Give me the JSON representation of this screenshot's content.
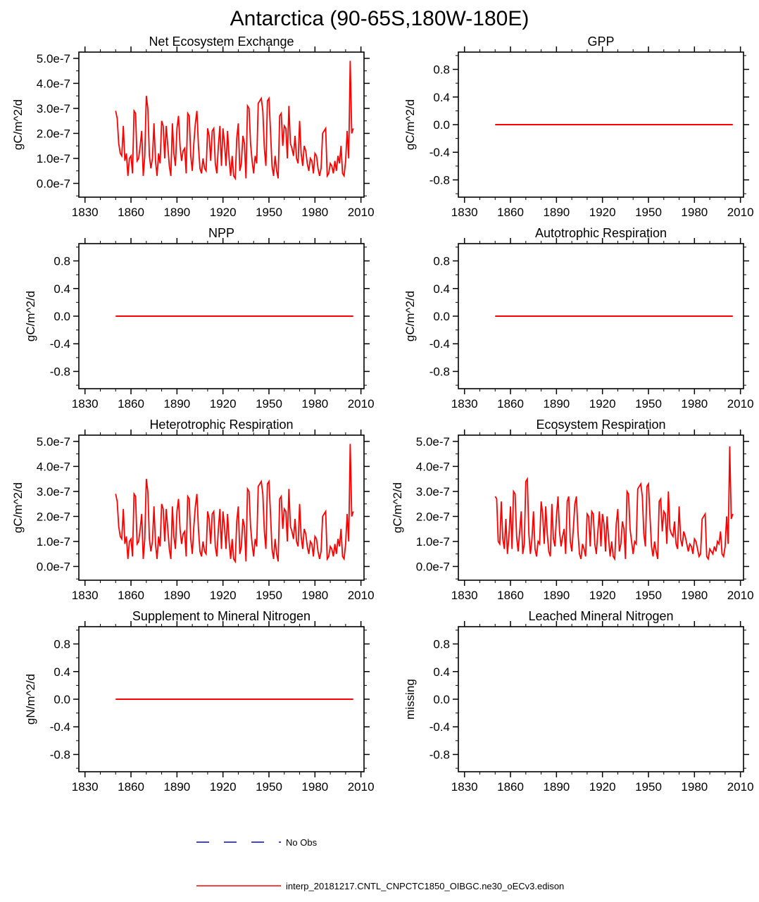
{
  "page": {
    "title": "Antarctica (90-65S,180W-180E)"
  },
  "legend": {
    "no_obs": {
      "label": "No Obs",
      "color": "#4444cc",
      "style": "dashed"
    },
    "model": {
      "label": "interp_20181217.CNTL_CNPCTC1850_OIBGC.ne30_oECv3.edison",
      "color": "#ff0000",
      "style": "solid"
    }
  },
  "chart_data": [
    {
      "type": "line",
      "title": "Net Ecosystem Exchange",
      "ylabel": "gC/m^2/d",
      "line_color": "#ff0000",
      "grid": false,
      "xlim": [
        1826,
        2012
      ],
      "ylim": [
        -5.5e-08,
        5.25e-07
      ],
      "x_ticks": [
        1830,
        1860,
        1890,
        1920,
        1950,
        1980,
        2010
      ],
      "x_minor_step": 10,
      "y_ticks": [
        0,
        1e-07,
        2e-07,
        3e-07,
        4e-07,
        5e-07
      ],
      "y_tick_labels": [
        "0.0e-7",
        "1.0e-7",
        "2.0e-7",
        "3.0e-7",
        "4.0e-7",
        "5.0e-7"
      ],
      "y_minor_step": 5e-08,
      "x_start": 1850,
      "x_step": 1,
      "value_scale": 1e-07,
      "values": [
        2.9,
        2.6,
        1.6,
        1.2,
        1.1,
        2.3,
        0.9,
        1.2,
        0.3,
        1.0,
        1.1,
        0.4,
        2.9,
        2.8,
        0.9,
        1.0,
        1.5,
        2.1,
        0.3,
        1.1,
        3.5,
        3.0,
        1.1,
        0.6,
        1.0,
        2.4,
        0.9,
        0.3,
        1.2,
        0.8,
        2.5,
        2.3,
        1.0,
        2.3,
        1.5,
        0.7,
        0.3,
        2.4,
        1.2,
        0.7,
        2.2,
        2.7,
        1.5,
        0.9,
        1.3,
        1.4,
        0.4,
        2.8,
        2.7,
        1.1,
        0.5,
        1.6,
        2.4,
        2.9,
        1.5,
        0.6,
        0.4,
        1.0,
        0.6,
        0.5,
        2.2,
        1.9,
        0.9,
        2.1,
        2.2,
        0.8,
        0.4,
        1.5,
        2.3,
        0.7,
        2.2,
        1.6,
        0.7,
        2.1,
        1.0,
        0.3,
        1.1,
        0.3,
        0.2,
        1.8,
        2.4,
        0.5,
        0.8,
        1.9,
        1.6,
        0.2,
        3.1,
        3.0,
        1.6,
        0.9,
        0.4,
        1.1,
        0.8,
        3.2,
        3.3,
        3.4,
        2.9,
        1.4,
        0.7,
        3.3,
        3.4,
        2.1,
        0.7,
        0.3,
        1.1,
        0.5,
        0.2,
        2.7,
        2.8,
        1.5,
        2.3,
        2.2,
        1.0,
        3.1,
        1.6,
        1.4,
        1.1,
        1.9,
        1.0,
        0.8,
        2.5,
        1.2,
        0.7,
        1.5,
        1.3,
        0.8,
        0.5,
        1.0,
        0.9,
        0.4,
        1.2,
        1.1,
        0.6,
        0.3,
        0.6,
        2.0,
        2.1,
        2.2,
        0.3,
        0.4,
        0.8,
        0.7,
        0.4,
        0.9,
        0.5,
        1.1,
        0.8,
        1.5,
        0.4,
        0.3,
        0.9,
        2.1,
        1.0,
        4.9,
        2.0,
        2.2
      ]
    },
    {
      "type": "line",
      "title": "GPP",
      "ylabel": "gC/m^2/d",
      "line_color": "#ff0000",
      "grid": false,
      "xlim": [
        1826,
        2012
      ],
      "ylim": [
        -1.05,
        1.05
      ],
      "x_ticks": [
        1830,
        1860,
        1890,
        1920,
        1950,
        1980,
        2010
      ],
      "x_minor_step": 10,
      "y_ticks": [
        -0.8,
        -0.4,
        0,
        0.4,
        0.8
      ],
      "y_tick_labels": [
        "-0.8",
        "-0.4",
        "0.0",
        "0.4",
        "0.8"
      ],
      "y_minor_step": 0.2,
      "flat": {
        "x0": 1850,
        "x1": 2005,
        "y": 0.0
      },
      "values": null
    },
    {
      "type": "line",
      "title": "NPP",
      "ylabel": "gC/m^2/d",
      "line_color": "#ff0000",
      "grid": false,
      "xlim": [
        1826,
        2012
      ],
      "ylim": [
        -1.05,
        1.05
      ],
      "x_ticks": [
        1830,
        1860,
        1890,
        1920,
        1950,
        1980,
        2010
      ],
      "x_minor_step": 10,
      "y_ticks": [
        -0.8,
        -0.4,
        0,
        0.4,
        0.8
      ],
      "y_tick_labels": [
        "-0.8",
        "-0.4",
        "0.0",
        "0.4",
        "0.8"
      ],
      "y_minor_step": 0.2,
      "flat": {
        "x0": 1850,
        "x1": 2005,
        "y": 0.0
      },
      "values": null
    },
    {
      "type": "line",
      "title": "Autotrophic Respiration",
      "ylabel": "gC/m^2/d",
      "line_color": "#ff0000",
      "grid": false,
      "xlim": [
        1826,
        2012
      ],
      "ylim": [
        -1.05,
        1.05
      ],
      "x_ticks": [
        1830,
        1860,
        1890,
        1920,
        1950,
        1980,
        2010
      ],
      "x_minor_step": 10,
      "y_ticks": [
        -0.8,
        -0.4,
        0,
        0.4,
        0.8
      ],
      "y_tick_labels": [
        "-0.8",
        "-0.4",
        "0.0",
        "0.4",
        "0.8"
      ],
      "y_minor_step": 0.2,
      "flat": {
        "x0": 1850,
        "x1": 2005,
        "y": 0.0
      },
      "values": null
    },
    {
      "type": "line",
      "title": "Heterotrophic Respiration",
      "ylabel": "gC/m^2/d",
      "line_color": "#ff0000",
      "grid": false,
      "xlim": [
        1826,
        2012
      ],
      "ylim": [
        -5.5e-08,
        5.25e-07
      ],
      "x_ticks": [
        1830,
        1860,
        1890,
        1920,
        1950,
        1980,
        2010
      ],
      "x_minor_step": 10,
      "y_ticks": [
        0,
        1e-07,
        2e-07,
        3e-07,
        4e-07,
        5e-07
      ],
      "y_tick_labels": [
        "0.0e-7",
        "1.0e-7",
        "2.0e-7",
        "3.0e-7",
        "4.0e-7",
        "5.0e-7"
      ],
      "y_minor_step": 5e-08,
      "x_start": 1850,
      "x_step": 1,
      "value_scale": 1e-07,
      "values": [
        2.9,
        2.6,
        1.6,
        1.2,
        1.1,
        2.3,
        0.9,
        1.2,
        0.3,
        1.0,
        1.1,
        0.4,
        2.9,
        2.8,
        0.9,
        1.0,
        1.5,
        2.1,
        0.3,
        1.1,
        3.5,
        3.0,
        1.1,
        0.6,
        1.0,
        2.4,
        0.9,
        0.3,
        1.2,
        0.8,
        2.5,
        2.3,
        1.0,
        2.3,
        1.5,
        0.7,
        0.3,
        2.4,
        1.2,
        0.7,
        2.2,
        2.7,
        1.5,
        0.9,
        1.3,
        1.4,
        0.4,
        2.8,
        2.7,
        1.1,
        0.5,
        1.6,
        2.4,
        2.9,
        1.5,
        0.6,
        0.4,
        1.0,
        0.6,
        0.5,
        2.2,
        1.9,
        0.9,
        2.1,
        2.2,
        0.8,
        0.4,
        1.5,
        2.3,
        0.7,
        2.2,
        1.6,
        0.7,
        2.1,
        1.0,
        0.3,
        1.1,
        0.3,
        0.2,
        1.8,
        2.4,
        0.5,
        0.8,
        1.9,
        1.6,
        0.2,
        3.1,
        3.0,
        1.6,
        0.9,
        0.4,
        1.1,
        0.8,
        3.2,
        3.3,
        3.4,
        2.9,
        1.4,
        0.7,
        3.3,
        3.4,
        2.1,
        0.7,
        0.3,
        1.1,
        0.5,
        0.2,
        2.7,
        2.8,
        1.5,
        2.3,
        2.2,
        1.0,
        3.1,
        1.6,
        1.4,
        1.1,
        1.9,
        1.0,
        0.8,
        2.5,
        1.2,
        0.7,
        1.5,
        1.3,
        0.8,
        0.5,
        1.0,
        0.9,
        0.4,
        1.2,
        1.1,
        0.6,
        0.3,
        0.6,
        2.0,
        2.1,
        2.2,
        0.3,
        0.4,
        0.8,
        0.7,
        0.4,
        0.9,
        0.5,
        1.1,
        0.8,
        1.5,
        0.4,
        0.3,
        0.9,
        2.1,
        1.0,
        4.9,
        2.0,
        2.2
      ]
    },
    {
      "type": "line",
      "title": "Ecosystem Respiration",
      "ylabel": "gC/m^2/d",
      "line_color": "#ff0000",
      "grid": false,
      "xlim": [
        1826,
        2012
      ],
      "ylim": [
        -5.5e-08,
        5.25e-07
      ],
      "x_ticks": [
        1830,
        1860,
        1890,
        1920,
        1950,
        1980,
        2010
      ],
      "x_minor_step": 10,
      "y_ticks": [
        0,
        1e-07,
        2e-07,
        3e-07,
        4e-07,
        5e-07
      ],
      "y_tick_labels": [
        "0.0e-7",
        "1.0e-7",
        "2.0e-7",
        "3.0e-7",
        "4.0e-7",
        "5.0e-7"
      ],
      "y_minor_step": 5e-08,
      "x_start": 1850,
      "x_step": 1,
      "value_scale": 1e-07,
      "values": [
        2.8,
        2.7,
        1.0,
        0.9,
        2.6,
        1.1,
        0.7,
        1.9,
        0.5,
        1.2,
        2.4,
        0.7,
        3.0,
        2.9,
        1.2,
        0.6,
        1.4,
        2.2,
        0.5,
        0.9,
        3.4,
        3.5,
        1.3,
        0.5,
        1.1,
        2.2,
        0.7,
        0.4,
        1.0,
        0.9,
        2.6,
        2.1,
        0.9,
        2.4,
        1.3,
        0.6,
        0.4,
        2.5,
        1.1,
        0.8,
        2.0,
        2.8,
        1.4,
        0.8,
        1.2,
        1.5,
        0.5,
        2.6,
        2.8,
        1.0,
        0.6,
        1.5,
        2.5,
        2.8,
        1.4,
        0.5,
        0.3,
        0.9,
        0.7,
        0.4,
        2.1,
        2.0,
        0.8,
        2.2,
        2.1,
        0.9,
        0.5,
        1.4,
        2.2,
        0.8,
        2.1,
        1.7,
        0.6,
        2.0,
        1.1,
        0.4,
        1.0,
        0.4,
        0.3,
        1.7,
        2.3,
        0.6,
        0.9,
        1.8,
        1.5,
        0.3,
        3.0,
        2.9,
        1.5,
        1.0,
        0.5,
        1.0,
        0.9,
        3.1,
        3.2,
        3.3,
        2.8,
        1.3,
        0.8,
        3.2,
        3.3,
        2.0,
        0.8,
        0.4,
        1.0,
        0.6,
        0.3,
        2.6,
        2.7,
        1.4,
        2.2,
        2.1,
        0.9,
        3.0,
        1.5,
        1.3,
        1.2,
        1.8,
        0.9,
        0.7,
        2.4,
        1.1,
        0.8,
        1.4,
        1.2,
        0.9,
        0.6,
        0.9,
        0.8,
        0.5,
        1.1,
        1.0,
        0.7,
        0.4,
        0.5,
        1.9,
        2.0,
        2.1,
        0.4,
        0.3,
        0.7,
        0.6,
        0.5,
        0.8,
        0.6,
        1.0,
        0.9,
        1.4,
        0.5,
        0.4,
        0.8,
        2.0,
        0.9,
        4.8,
        1.9,
        2.1
      ]
    },
    {
      "type": "line",
      "title": "Supplement to Mineral Nitrogen",
      "ylabel": "gN/m^2/d",
      "line_color": "#ff0000",
      "grid": false,
      "xlim": [
        1826,
        2012
      ],
      "ylim": [
        -1.05,
        1.05
      ],
      "x_ticks": [
        1830,
        1860,
        1890,
        1920,
        1950,
        1980,
        2010
      ],
      "x_minor_step": 10,
      "y_ticks": [
        -0.8,
        -0.4,
        0,
        0.4,
        0.8
      ],
      "y_tick_labels": [
        "-0.8",
        "-0.4",
        "0.0",
        "0.4",
        "0.8"
      ],
      "y_minor_step": 0.2,
      "flat": {
        "x0": 1850,
        "x1": 2005,
        "y": 0.0
      },
      "values": null
    },
    {
      "type": "line",
      "title": "Leached Mineral Nitrogen",
      "ylabel": "missing",
      "line_color": "#ff0000",
      "grid": false,
      "xlim": [
        1826,
        2012
      ],
      "ylim": [
        -1.05,
        1.05
      ],
      "x_ticks": [
        1830,
        1860,
        1890,
        1920,
        1950,
        1980,
        2010
      ],
      "x_minor_step": 10,
      "y_ticks": [
        -0.8,
        -0.4,
        0,
        0.4,
        0.8
      ],
      "y_tick_labels": [
        "-0.8",
        "-0.4",
        "0.0",
        "0.4",
        "0.8"
      ],
      "y_minor_step": 0.2,
      "flat": null,
      "values": null
    }
  ]
}
